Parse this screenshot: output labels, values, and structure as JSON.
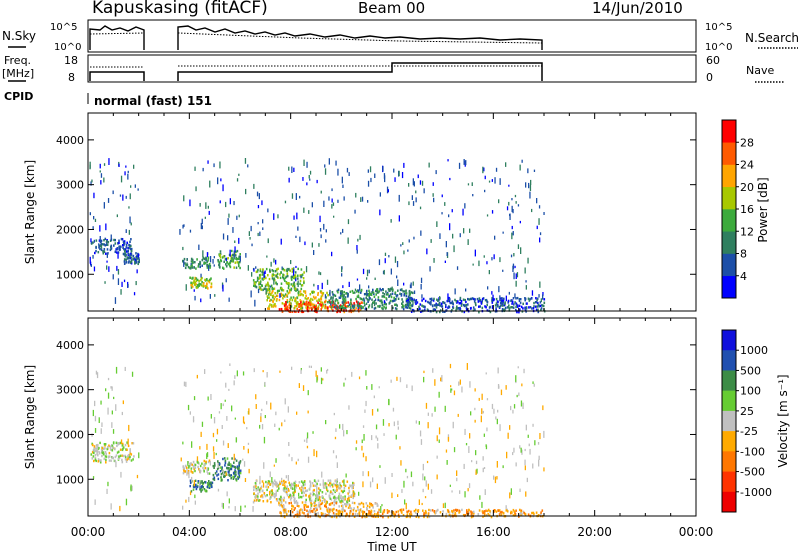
{
  "header": {
    "station": "Kapuskasing (fitACF)",
    "beam": "Beam 00",
    "date": "14/Jun/2010"
  },
  "noise_panel": {
    "left_label": "N.Sky",
    "right_label": "N.Search",
    "left_ticks": [
      "10^5",
      "10^0"
    ],
    "right_ticks": [
      "10^5",
      "10^0"
    ]
  },
  "freq_panel": {
    "left_label_1": "Freq.",
    "left_label_2": "[MHz]",
    "right_label": "Nave",
    "left_ticks": [
      "18",
      "8"
    ],
    "right_ticks": [
      "60",
      "0"
    ]
  },
  "cpid": {
    "label": "CPID",
    "value": "normal (fast) 151"
  },
  "colors": {
    "power_scale": [
      "#0000ff",
      "#1c4fa8",
      "#2f7f5f",
      "#3caa3c",
      "#a8c800",
      "#ffa500",
      "#ff5a00",
      "#ff0000"
    ],
    "velocity_scale": [
      "#1010dd",
      "#2050b0",
      "#3c8c46",
      "#66cc33",
      "#c0c0c0",
      "#ffaa00",
      "#ff7700",
      "#ff3300",
      "#ee0000"
    ]
  },
  "chart_data": [
    {
      "type": "heatmap",
      "title": "",
      "xlabel": "Time UT",
      "ylabel": "Slant Range [km]",
      "x_ticks": [
        "00:00",
        "04:00",
        "08:00",
        "12:00",
        "16:00",
        "20:00",
        "00:00"
      ],
      "xlim_hours": [
        0,
        24
      ],
      "y_ticks": [
        "1000",
        "2000",
        "3000",
        "4000"
      ],
      "ylim": [
        180,
        4600
      ],
      "colorbar": {
        "label": "Power [dB]",
        "ticks": [
          "4",
          "8",
          "12",
          "16",
          "20",
          "24",
          "28"
        ],
        "range": [
          0,
          32
        ]
      },
      "regions": [
        {
          "t0": 0.1,
          "t1": 1.7,
          "r0": 1480,
          "r1": 1820,
          "level": 0.15
        },
        {
          "t0": 1.4,
          "t1": 2.0,
          "r0": 1250,
          "r1": 1500,
          "level": 0.2
        },
        {
          "t0": 3.7,
          "t1": 4.8,
          "r0": 1150,
          "r1": 1400,
          "level": 0.3
        },
        {
          "t0": 4.0,
          "t1": 4.9,
          "r0": 700,
          "r1": 950,
          "level": 0.55
        },
        {
          "t0": 5.1,
          "t1": 6.0,
          "r0": 1150,
          "r1": 1550,
          "level": 0.4
        },
        {
          "t0": 6.5,
          "t1": 8.5,
          "r0": 650,
          "r1": 1150,
          "level": 0.45
        },
        {
          "t0": 7.0,
          "t1": 9.5,
          "r0": 250,
          "r1": 650,
          "level": 0.6
        },
        {
          "t0": 7.5,
          "t1": 10.8,
          "r0": 180,
          "r1": 420,
          "level": 0.92
        },
        {
          "t0": 9.5,
          "t1": 12.8,
          "r0": 250,
          "r1": 700,
          "level": 0.3
        },
        {
          "t0": 12.5,
          "t1": 18.0,
          "r0": 180,
          "r1": 500,
          "level": 0.15
        }
      ]
    },
    {
      "type": "heatmap",
      "title": "",
      "xlabel": "Time UT",
      "ylabel": "Slant Range [km]",
      "x_ticks": [
        "00:00",
        "04:00",
        "08:00",
        "12:00",
        "16:00",
        "20:00",
        "00:00"
      ],
      "xlim_hours": [
        0,
        24
      ],
      "y_ticks": [
        "1000",
        "2000",
        "3000",
        "4000"
      ],
      "ylim": [
        180,
        4600
      ],
      "colorbar": {
        "label": "Velocity [m s⁻¹]",
        "ticks": [
          "1000",
          "500",
          "100",
          "25",
          "-25",
          "-100",
          "-500",
          "-1000"
        ],
        "range": [
          -1500,
          1500
        ]
      },
      "regions": [
        {
          "t0": 0.1,
          "t1": 1.8,
          "r0": 1400,
          "r1": 1850,
          "level": 0.5
        },
        {
          "t0": 3.7,
          "t1": 4.8,
          "r0": 1150,
          "r1": 1450,
          "level": 0.5
        },
        {
          "t0": 4.0,
          "t1": 4.9,
          "r0": 750,
          "r1": 1000,
          "level": 0.25
        },
        {
          "t0": 4.9,
          "t1": 6.0,
          "r0": 1000,
          "r1": 1500,
          "level": 0.22
        },
        {
          "t0": 6.5,
          "t1": 10.5,
          "r0": 500,
          "r1": 1000,
          "level": 0.5
        },
        {
          "t0": 7.5,
          "t1": 11.5,
          "r0": 180,
          "r1": 500,
          "level": 0.62
        },
        {
          "t0": 11.0,
          "t1": 18.0,
          "r0": 180,
          "r1": 350,
          "level": 0.66
        }
      ]
    }
  ]
}
